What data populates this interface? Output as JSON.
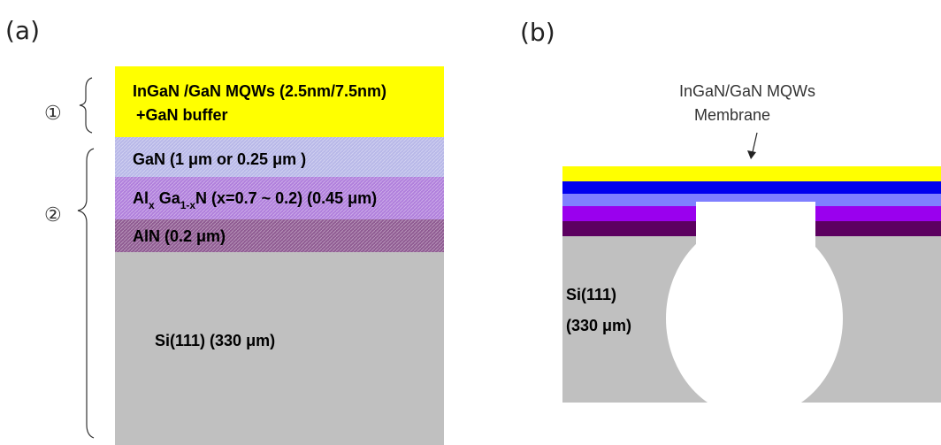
{
  "panel_a": {
    "label": "(a)",
    "marker_1": "①",
    "marker_2": "②",
    "layers": {
      "mqw_line1": "InGaN /GaN MQWs (2.5nm/7.5nm)",
      "mqw_line2": "+GaN buffer",
      "gan": "GaN (1 μm or 0.25 μm )",
      "algan": [
        "Al",
        "x",
        " Ga",
        "1-x",
        "N (x=0.7 ~ 0.2) (0.45 μm)"
      ],
      "aln": "AlN (0.2 μm)",
      "si": "Si(111) (330 μm)"
    }
  },
  "panel_b": {
    "label": "(b)",
    "callout": [
      "InGaN/GaN MQWs",
      "Membrane"
    ],
    "si": [
      "Si(111)",
      "(330 μm)"
    ]
  }
}
